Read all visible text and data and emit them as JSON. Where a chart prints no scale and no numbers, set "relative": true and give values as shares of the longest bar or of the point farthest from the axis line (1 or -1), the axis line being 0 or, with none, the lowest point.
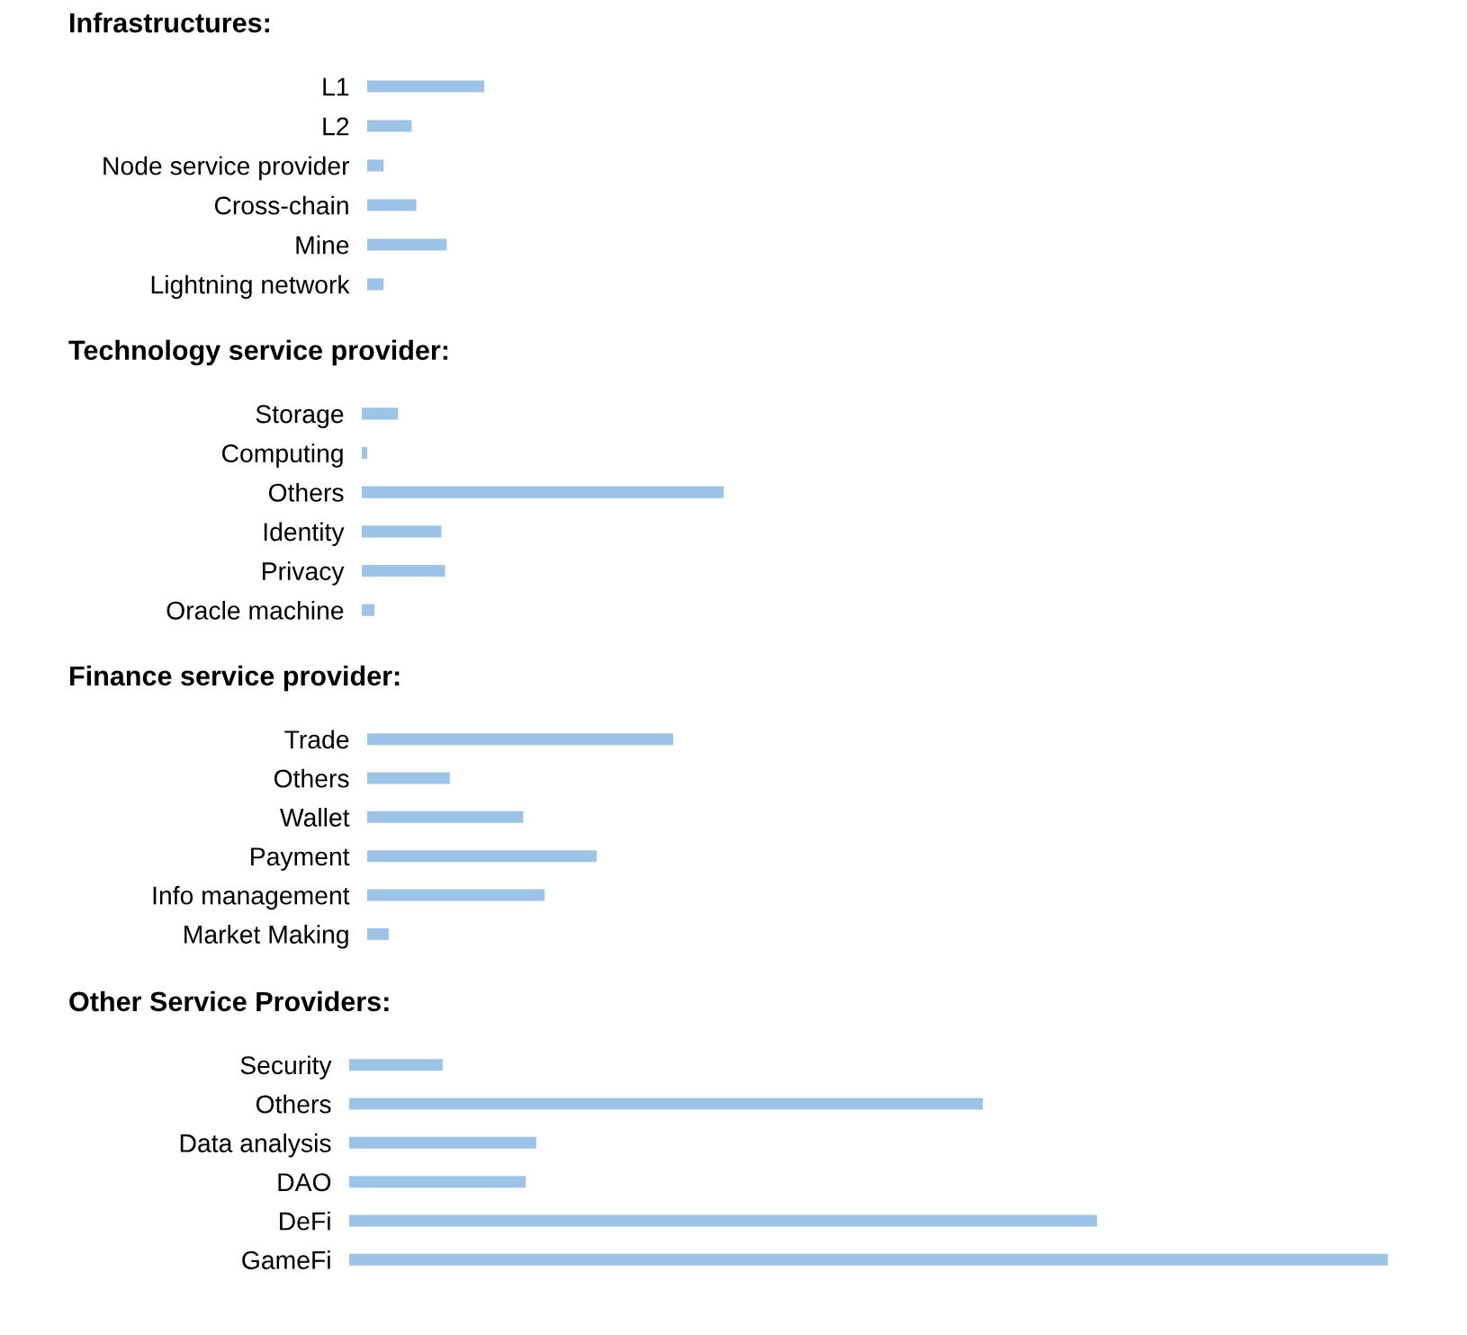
{
  "chart_data": [
    {
      "type": "bar",
      "orientation": "horizontal",
      "relative": true,
      "title": "Infrastructures:",
      "categories": [
        "L1",
        "L2",
        "Node service provider",
        "Cross-chain",
        "Mine",
        "Lightning network"
      ],
      "values": [
        1,
        0.38,
        0.14,
        0.42,
        0.68,
        0.14
      ],
      "color": "#9dc3e6"
    },
    {
      "type": "bar",
      "orientation": "horizontal",
      "relative": true,
      "title": "Technology service provider:",
      "categories": [
        "Storage",
        "Computing",
        "Others",
        "Identity",
        "Privacy",
        "Oracle machine"
      ],
      "values": [
        0.1,
        0.015,
        1,
        0.22,
        0.23,
        0.035
      ],
      "color": "#9dc3e6"
    },
    {
      "type": "bar",
      "orientation": "horizontal",
      "relative": true,
      "title": "Finance service provider:",
      "categories": [
        "Trade",
        "Others",
        "Wallet",
        "Payment",
        "Info management",
        "Market Making"
      ],
      "values": [
        1,
        0.27,
        0.51,
        0.75,
        0.58,
        0.07
      ],
      "color": "#9dc3e6"
    },
    {
      "type": "bar",
      "orientation": "horizontal",
      "relative": true,
      "title": "Other Service Providers:",
      "categories": [
        "Security",
        "Others",
        "Data analysis",
        "DAO",
        "DeFi",
        "GameFi"
      ],
      "values": [
        0.09,
        0.61,
        0.18,
        0.17,
        0.72,
        1
      ],
      "color": "#9dc3e6"
    }
  ]
}
